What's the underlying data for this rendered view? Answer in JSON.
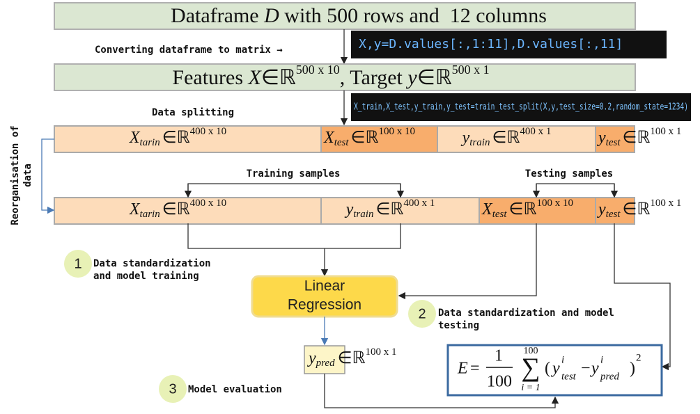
{
  "header": {
    "title": [
      "Dataframe ",
      "D",
      " with 500 rows and  12 columns"
    ]
  },
  "code_1": "X,y=D.values[:,1:11],D.values[:,11]",
  "step_convert": "Converting dataframe to matrix →",
  "features": {
    "label": "Features ",
    "var1": "X",
    "set1": "∈ℝ",
    "dim1": "500 x 10",
    "sep": ", Target ",
    "var2": "y",
    "set2": "∈ℝ",
    "dim2": "500 x 1"
  },
  "code_2": "X_train,X_test,y_train,y_test=train_test_split(X,y,test_size=0.2,random_state=1234)",
  "step_split": "Data splitting",
  "side_label": [
    "Reorganisation of",
    "data"
  ],
  "split_row": [
    {
      "var": "X",
      "sub": "tarin",
      "set": "∈ℝ",
      "dim": "400 x 10"
    },
    {
      "var": "X",
      "sub": "test",
      "set": "∈ℝ",
      "dim": "100 x 10"
    },
    {
      "var": "y",
      "sub": "train",
      "set": "∈ℝ",
      "dim": "400 x 1"
    },
    {
      "var": "y",
      "sub": "test",
      "set": "∈ℝ",
      "dim": "100 x 1"
    }
  ],
  "training_samples": "Training samples",
  "testing_samples": "Testing samples",
  "reorg_row": [
    {
      "var": "X",
      "sub": "tarin",
      "set": "∈ℝ",
      "dim": "400 x 10"
    },
    {
      "var": "y",
      "sub": "train",
      "set": "∈ℝ",
      "dim": "400 x 1"
    },
    {
      "var": "X",
      "sub": "test",
      "set": "∈ℝ",
      "dim": "100 x 10"
    },
    {
      "var": "y",
      "sub": "test",
      "set": "∈ℝ",
      "dim": "100 x 1"
    }
  ],
  "steps": [
    {
      "number": "1",
      "lines": [
        "Data standardization",
        "and model training"
      ]
    },
    {
      "number": "2",
      "lines": [
        "Data standardization and model",
        "testing"
      ]
    },
    {
      "number": "3",
      "lines": [
        "Model evaluation"
      ]
    }
  ],
  "model": [
    "Linear",
    "Regression"
  ],
  "prediction": {
    "var": "y",
    "sub": "pred",
    "set": "∈ℝ",
    "dim": "100 x 1"
  },
  "formula": {
    "lhs": "E",
    "eq": "=",
    "num": "1",
    "den": "100",
    "sum_symbol": "∑",
    "upper": "100",
    "lower": "i = 1",
    "open": "(",
    "y1": "y",
    "sup1": "i",
    "sub1": "test",
    "minus": "−",
    "y2": "y",
    "sup2": "i",
    "sub2": "pred",
    "close": ")",
    "power": "2"
  }
}
